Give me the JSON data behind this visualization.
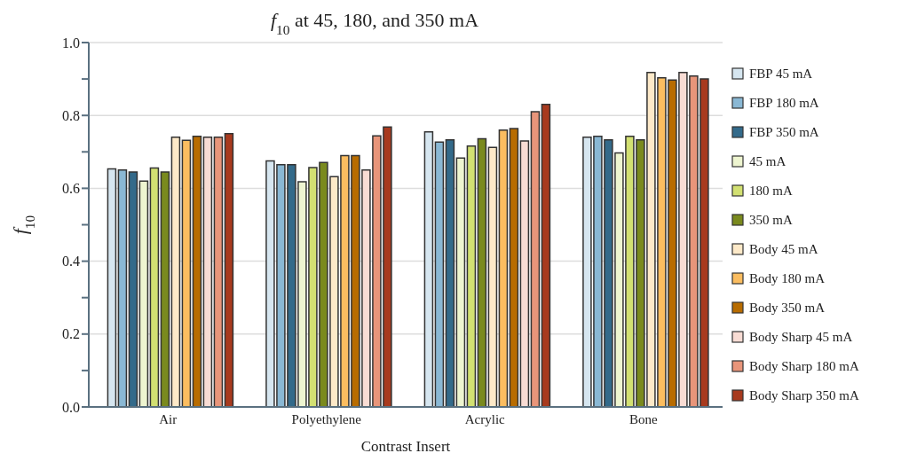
{
  "chart_data": {
    "type": "bar",
    "title": "f$_{10}$ at 45, 180, and 350 mA",
    "xlabel": "Contrast Insert",
    "ylabel": "f$_{10}$",
    "categories": [
      "Air",
      "Polyethylene",
      "Acrylic",
      "Bone"
    ],
    "series": [
      {
        "name": "FBP 45 mA",
        "color": "#d6e6f0",
        "values": [
          0.653,
          0.675,
          0.755,
          0.74
        ]
      },
      {
        "name": "FBP 180 mA",
        "color": "#8ab8d4",
        "values": [
          0.65,
          0.665,
          0.727,
          0.743
        ]
      },
      {
        "name": "FBP 350 mA",
        "color": "#336a8a",
        "values": [
          0.645,
          0.665,
          0.733,
          0.733
        ]
      },
      {
        "name": "45 mA",
        "color": "#eef5d0",
        "values": [
          0.62,
          0.618,
          0.683,
          0.697
        ]
      },
      {
        "name": "180 mA",
        "color": "#d2e072",
        "values": [
          0.656,
          0.657,
          0.716,
          0.743
        ]
      },
      {
        "name": "350 mA",
        "color": "#7a8a1e",
        "values": [
          0.645,
          0.671,
          0.736,
          0.733
        ]
      },
      {
        "name": "Body 45 mA",
        "color": "#fde9c8",
        "values": [
          0.74,
          0.632,
          0.712,
          0.918
        ]
      },
      {
        "name": "Body 180 mA",
        "color": "#fbbd60",
        "values": [
          0.732,
          0.69,
          0.76,
          0.903
        ]
      },
      {
        "name": "Body 350 mA",
        "color": "#b86c00",
        "values": [
          0.743,
          0.69,
          0.764,
          0.897
        ]
      },
      {
        "name": "Body Sharp 45 mA",
        "color": "#f8dcd4",
        "values": [
          0.74,
          0.65,
          0.73,
          0.918
        ]
      },
      {
        "name": "Body Sharp 180 mA",
        "color": "#e8957a",
        "values": [
          0.74,
          0.744,
          0.81,
          0.908
        ]
      },
      {
        "name": "Body Sharp 350 mA",
        "color": "#a83a1e",
        "values": [
          0.75,
          0.768,
          0.83,
          0.9
        ]
      }
    ],
    "ylim": [
      0,
      1.0
    ],
    "yticks": [
      {
        "value": 0,
        "label": "0.0"
      },
      {
        "value": 0.1,
        "label": null
      },
      {
        "value": 0.2,
        "label": "0.2"
      },
      {
        "value": 0.3,
        "label": null
      },
      {
        "value": 0.4,
        "label": "0.4"
      },
      {
        "value": 0.5,
        "label": null
      },
      {
        "value": 0.6,
        "label": "0.6"
      },
      {
        "value": 0.7,
        "label": null
      },
      {
        "value": 0.8,
        "label": "0.8"
      },
      {
        "value": 0.9,
        "label": null
      },
      {
        "value": 1.0,
        "label": "1.0"
      }
    ],
    "grid": "y",
    "legend": "right"
  }
}
